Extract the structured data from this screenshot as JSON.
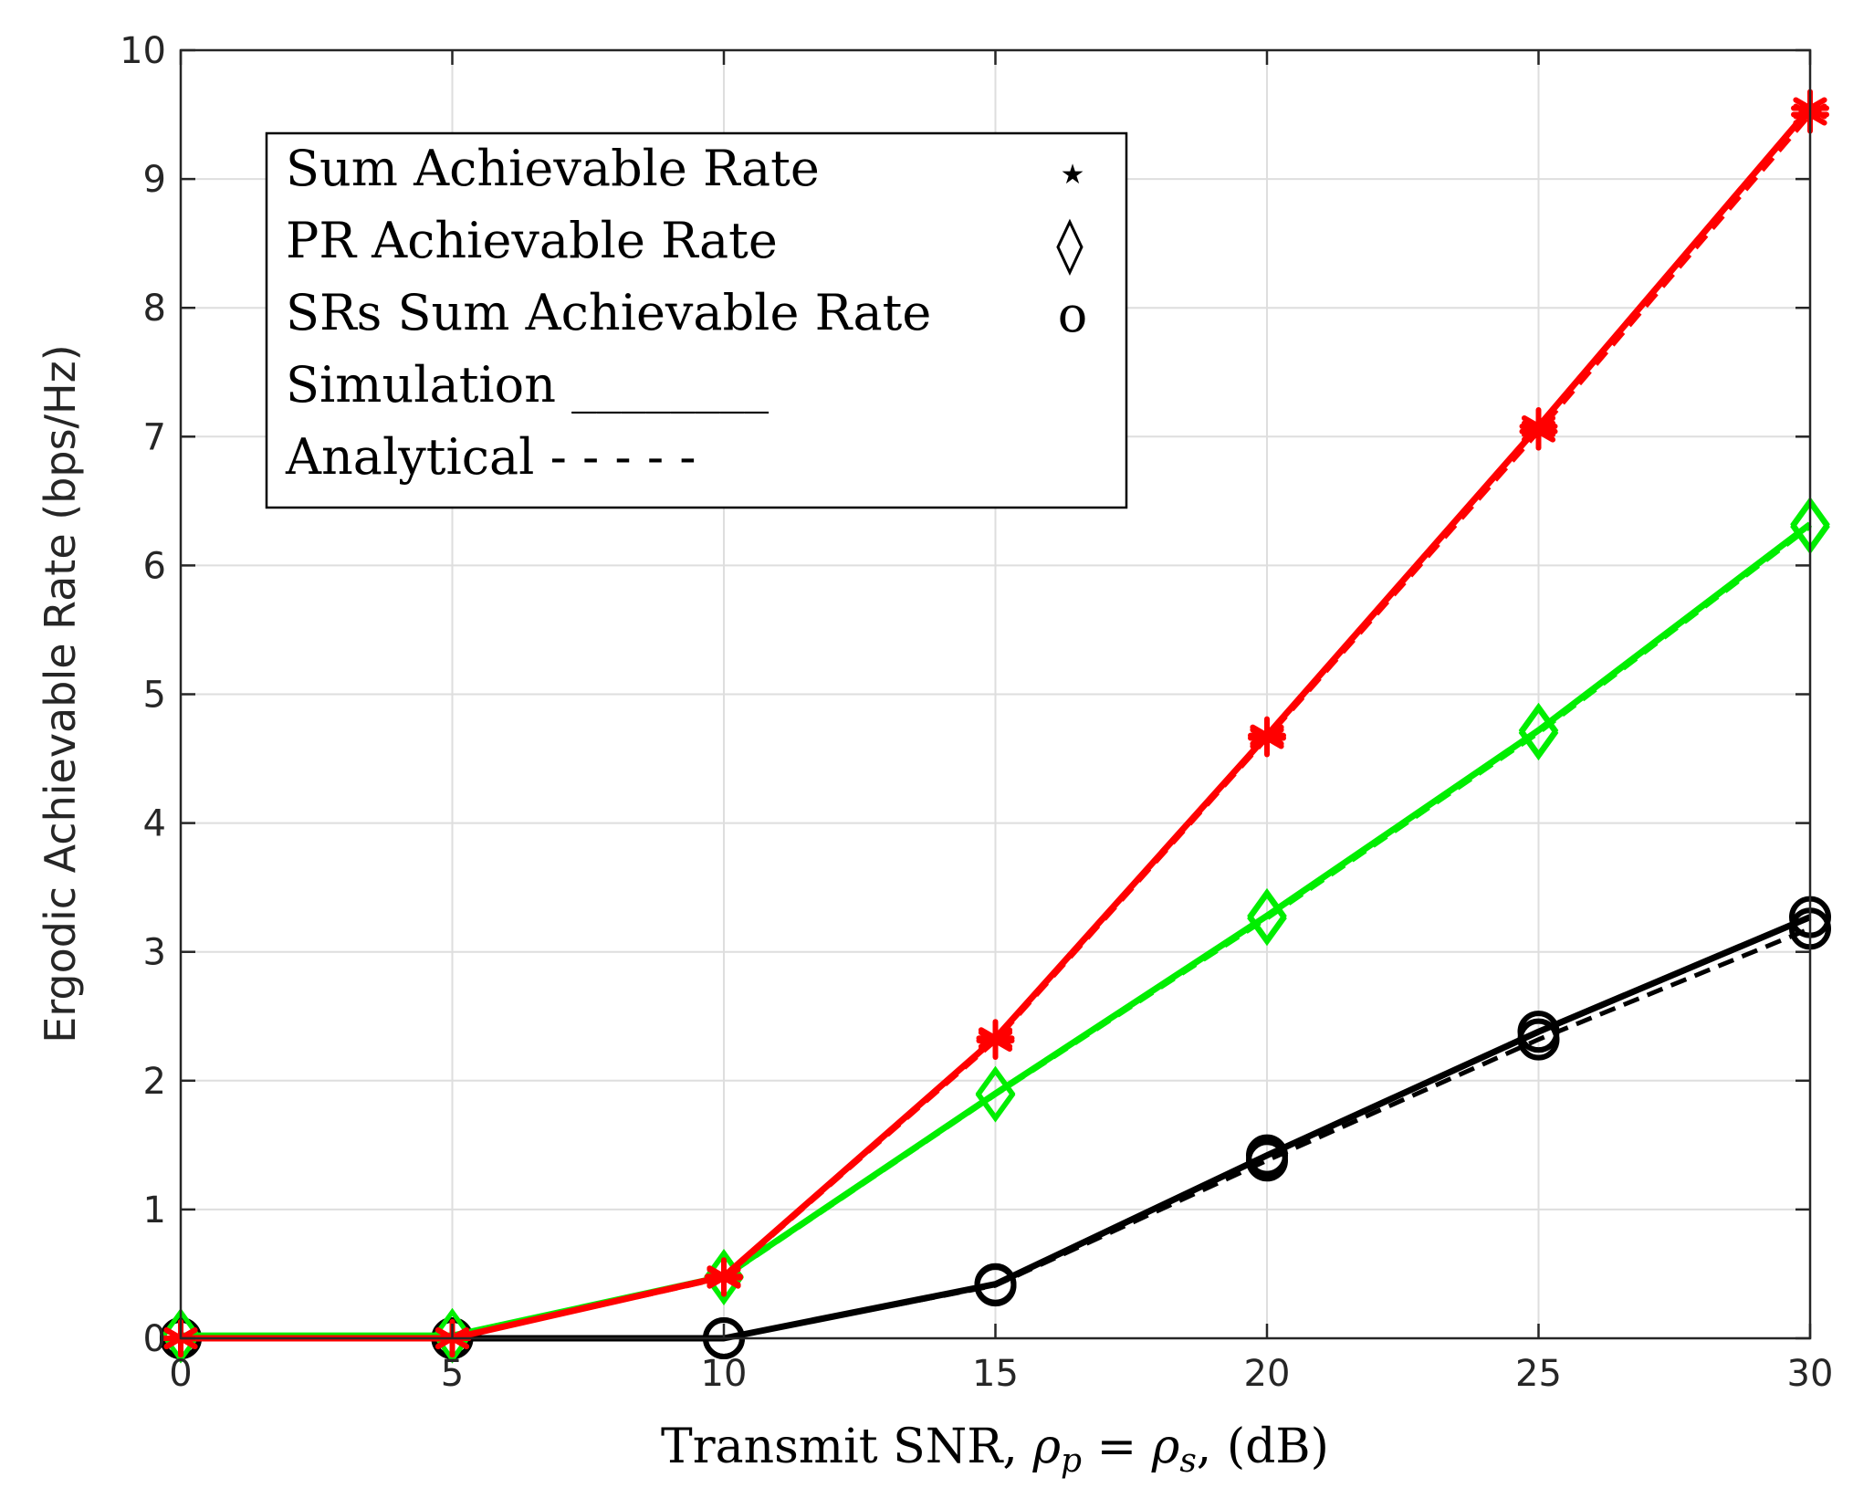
{
  "chart_data": {
    "type": "line",
    "title": "",
    "xlabel_text": "Transmit SNR, ",
    "xlabel_rho_p": "ρ",
    "xlabel_sub_p": "p",
    "xlabel_eq": " = ",
    "xlabel_rho_s": "ρ",
    "xlabel_sub_s": "s",
    "xlabel_unit": ", (dB)",
    "ylabel": "Ergodic Achievable Rate (bps/Hz)",
    "xlim": [
      0,
      30
    ],
    "ylim": [
      0,
      10
    ],
    "xticks": [
      0,
      5,
      10,
      15,
      20,
      25,
      30
    ],
    "yticks": [
      0,
      1,
      2,
      3,
      4,
      5,
      6,
      7,
      8,
      9,
      10
    ],
    "grid": true,
    "x": [
      0,
      5,
      10,
      15,
      20,
      25,
      30
    ],
    "series": [
      {
        "name": "Sum Achievable Rate (Simulation)",
        "color": "#ff0000",
        "marker": "star",
        "dash": "solid",
        "values": [
          0.0,
          0.0,
          0.48,
          2.33,
          4.68,
          7.08,
          9.55
        ]
      },
      {
        "name": "Sum Achievable Rate (Analytical)",
        "color": "#ff0000",
        "marker": "star",
        "dash": "dashed",
        "values": [
          0.0,
          0.0,
          0.47,
          2.31,
          4.66,
          7.04,
          9.5
        ]
      },
      {
        "name": "PR Achievable Rate (Simulation)",
        "color": "#00ee00",
        "marker": "diamond",
        "dash": "solid",
        "values": [
          0.02,
          0.02,
          0.48,
          1.9,
          3.28,
          4.72,
          6.32
        ]
      },
      {
        "name": "PR Achievable Rate (Analytical)",
        "color": "#00ee00",
        "marker": "diamond",
        "dash": "dashed",
        "values": [
          0.02,
          0.02,
          0.47,
          1.89,
          3.26,
          4.7,
          6.3
        ]
      },
      {
        "name": "SRs Sum Achievable Rate (Simulation)",
        "color": "#000000",
        "marker": "circle",
        "dash": "solid",
        "values": [
          0.0,
          0.0,
          0.0,
          0.42,
          1.42,
          2.38,
          3.27
        ]
      },
      {
        "name": "SRs Sum Achievable Rate (Analytical)",
        "color": "#000000",
        "marker": "circle",
        "dash": "dashed",
        "values": [
          0.0,
          0.0,
          0.0,
          0.41,
          1.38,
          2.32,
          3.18
        ]
      }
    ],
    "legend": {
      "position": "top-left",
      "entries": [
        {
          "label": "Sum Achievable Rate",
          "symbol": "⋆"
        },
        {
          "label": "PR Achievable Rate",
          "symbol": "◊"
        },
        {
          "label": "SRs Sum Achievable Rate",
          "symbol": "o"
        },
        {
          "label": "Simulation",
          "symbol": "________"
        },
        {
          "label": "Analytical",
          "symbol": "- - - - -"
        }
      ]
    }
  }
}
